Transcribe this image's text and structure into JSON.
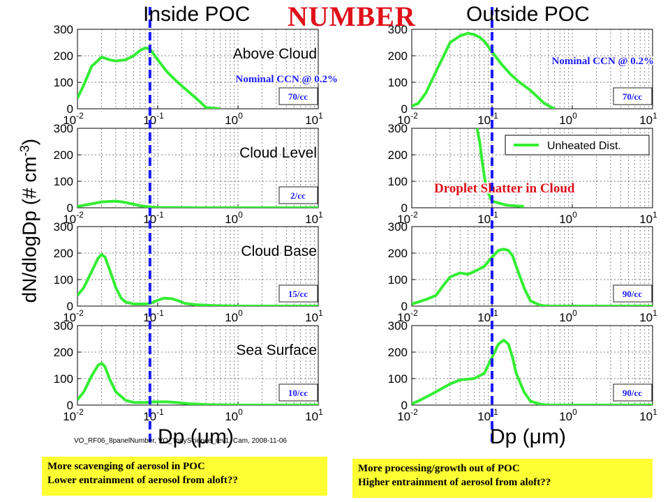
{
  "headings": {
    "left": "Inside POC",
    "center": "NUMBER",
    "right": "Outside POC"
  },
  "ylabel_parts": {
    "main": "dN/dlogDp (# cm",
    "exp": "-3",
    "close": ")"
  },
  "xlabel_left": "Dp (μm)",
  "xlabel_right": "Dp (μm)",
  "credit": "VO_RF06_8panelNumber, VO_TonyScience_rev1, Cam, 2008-11-06",
  "notes": {
    "left": [
      "More scavenging of aerosol in POC",
      "Lower entrainment of aerosol from aloft??"
    ],
    "right": [
      "More processing/growth out of POC",
      "Higher entrainment of aerosol from aloft??"
    ]
  },
  "colors": {
    "curve": "#33ee33",
    "cutoff": "#1a1aff",
    "conc_text": "#1a1aff",
    "annotation_red": "#e0101a",
    "note_bg": "#ffff33"
  },
  "tick_labels": {
    "y": [
      "0",
      "100",
      "200",
      "300"
    ],
    "x": [
      {
        "base": "10",
        "exp": "-2"
      },
      {
        "base": "10",
        "exp": "-1"
      },
      {
        "base": "10",
        "exp": "0"
      },
      {
        "base": "10",
        "exp": "1"
      }
    ]
  },
  "chart_data": [
    {
      "type": "line",
      "column": "Inside POC",
      "panel_label": "Above Cloud",
      "concentration": "70/cc",
      "annotation": "Nominal CCN @ 0.2%",
      "xscale": "log",
      "xlim": [
        0.01,
        10
      ],
      "ylim": [
        0,
        300
      ],
      "grid": true,
      "cutoff_dp": 0.08,
      "x": [
        0.01,
        0.012,
        0.015,
        0.02,
        0.025,
        0.03,
        0.04,
        0.05,
        0.06,
        0.07,
        0.08,
        0.1,
        0.13,
        0.17,
        0.22,
        0.3,
        0.4,
        0.6
      ],
      "y": [
        40,
        90,
        160,
        195,
        185,
        180,
        185,
        200,
        220,
        230,
        225,
        185,
        140,
        105,
        75,
        40,
        5,
        0
      ]
    },
    {
      "type": "line",
      "column": "Inside POC",
      "panel_label": "Cloud Level",
      "concentration": "2/cc",
      "xscale": "log",
      "xlim": [
        0.01,
        10
      ],
      "ylim": [
        0,
        300
      ],
      "grid": true,
      "cutoff_dp": 0.08,
      "x": [
        0.01,
        0.015,
        0.02,
        0.03,
        0.04,
        0.06,
        0.08,
        0.1,
        0.3,
        1,
        10
      ],
      "y": [
        5,
        15,
        22,
        25,
        20,
        8,
        3,
        1,
        0,
        0,
        0
      ]
    },
    {
      "type": "line",
      "column": "Inside POC",
      "panel_label": "Cloud Base",
      "concentration": "15/cc",
      "xscale": "log",
      "xlim": [
        0.01,
        10
      ],
      "ylim": [
        0,
        300
      ],
      "grid": true,
      "cutoff_dp": 0.08,
      "x": [
        0.01,
        0.012,
        0.015,
        0.018,
        0.02,
        0.022,
        0.025,
        0.03,
        0.035,
        0.04,
        0.05,
        0.07,
        0.08,
        0.1,
        0.12,
        0.15,
        0.18,
        0.22,
        0.3,
        0.5,
        1,
        10
      ],
      "y": [
        40,
        70,
        130,
        180,
        195,
        185,
        140,
        70,
        30,
        15,
        8,
        8,
        10,
        22,
        30,
        28,
        20,
        10,
        5,
        2,
        0,
        0
      ]
    },
    {
      "type": "line",
      "column": "Inside POC",
      "panel_label": "Sea Surface",
      "concentration": "10/cc",
      "xscale": "log",
      "xlim": [
        0.01,
        10
      ],
      "ylim": [
        0,
        300
      ],
      "grid": true,
      "cutoff_dp": 0.08,
      "x": [
        0.01,
        0.012,
        0.015,
        0.018,
        0.02,
        0.022,
        0.025,
        0.03,
        0.04,
        0.05,
        0.07,
        0.09,
        0.1,
        0.13,
        0.17,
        0.25,
        0.4,
        1,
        10
      ],
      "y": [
        20,
        50,
        110,
        150,
        158,
        145,
        100,
        50,
        18,
        10,
        10,
        12,
        12,
        12,
        10,
        5,
        2,
        0,
        0
      ]
    },
    {
      "type": "line",
      "column": "Outside POC",
      "panel_label": "",
      "concentration": "70/cc",
      "annotation": "Nominal CCN @ 0.2%",
      "xscale": "log",
      "xlim": [
        0.01,
        10
      ],
      "ylim": [
        0,
        300
      ],
      "grid": true,
      "cutoff_dp": 0.1,
      "x": [
        0.01,
        0.012,
        0.015,
        0.02,
        0.025,
        0.03,
        0.04,
        0.05,
        0.06,
        0.07,
        0.08,
        0.1,
        0.13,
        0.17,
        0.22,
        0.3,
        0.45,
        0.6
      ],
      "y": [
        10,
        20,
        60,
        140,
        200,
        250,
        275,
        285,
        280,
        270,
        255,
        215,
        170,
        130,
        100,
        70,
        20,
        0
      ]
    },
    {
      "type": "line",
      "column": "Outside POC",
      "panel_label": "",
      "concentration": "",
      "annotation": "Droplet Shatter in Cloud",
      "legend": "Unheated Dist.",
      "legend_position": "top-right",
      "xscale": "log",
      "xlim": [
        0.01,
        10
      ],
      "ylim": [
        0,
        300
      ],
      "grid": true,
      "cutoff_dp": 0.1,
      "x": [
        0.065,
        0.07,
        0.075,
        0.08,
        0.085,
        0.1,
        0.15,
        0.25
      ],
      "y": [
        300,
        250,
        180,
        120,
        70,
        25,
        10,
        5
      ]
    },
    {
      "type": "line",
      "column": "Outside POC",
      "panel_label": "",
      "concentration": "90/cc",
      "xscale": "log",
      "xlim": [
        0.01,
        10
      ],
      "ylim": [
        0,
        300
      ],
      "grid": true,
      "cutoff_dp": 0.1,
      "x": [
        0.01,
        0.012,
        0.015,
        0.02,
        0.025,
        0.03,
        0.04,
        0.05,
        0.06,
        0.08,
        0.1,
        0.12,
        0.14,
        0.16,
        0.18,
        0.2,
        0.25,
        0.3,
        0.4,
        0.5,
        1,
        10
      ],
      "y": [
        8,
        15,
        25,
        40,
        80,
        110,
        125,
        120,
        130,
        150,
        185,
        210,
        215,
        210,
        190,
        150,
        70,
        20,
        3,
        0,
        0,
        0
      ]
    },
    {
      "type": "line",
      "column": "Outside POC",
      "panel_label": "",
      "concentration": "90/cc",
      "xscale": "log",
      "xlim": [
        0.01,
        10
      ],
      "ylim": [
        0,
        300
      ],
      "grid": true,
      "cutoff_dp": 0.1,
      "x": [
        0.01,
        0.012,
        0.015,
        0.02,
        0.03,
        0.04,
        0.06,
        0.08,
        0.1,
        0.12,
        0.14,
        0.16,
        0.18,
        0.2,
        0.25,
        0.3,
        0.4,
        0.5,
        1,
        10
      ],
      "y": [
        5,
        15,
        30,
        50,
        80,
        95,
        100,
        120,
        180,
        230,
        245,
        230,
        180,
        120,
        50,
        15,
        3,
        0,
        0,
        0
      ]
    }
  ]
}
